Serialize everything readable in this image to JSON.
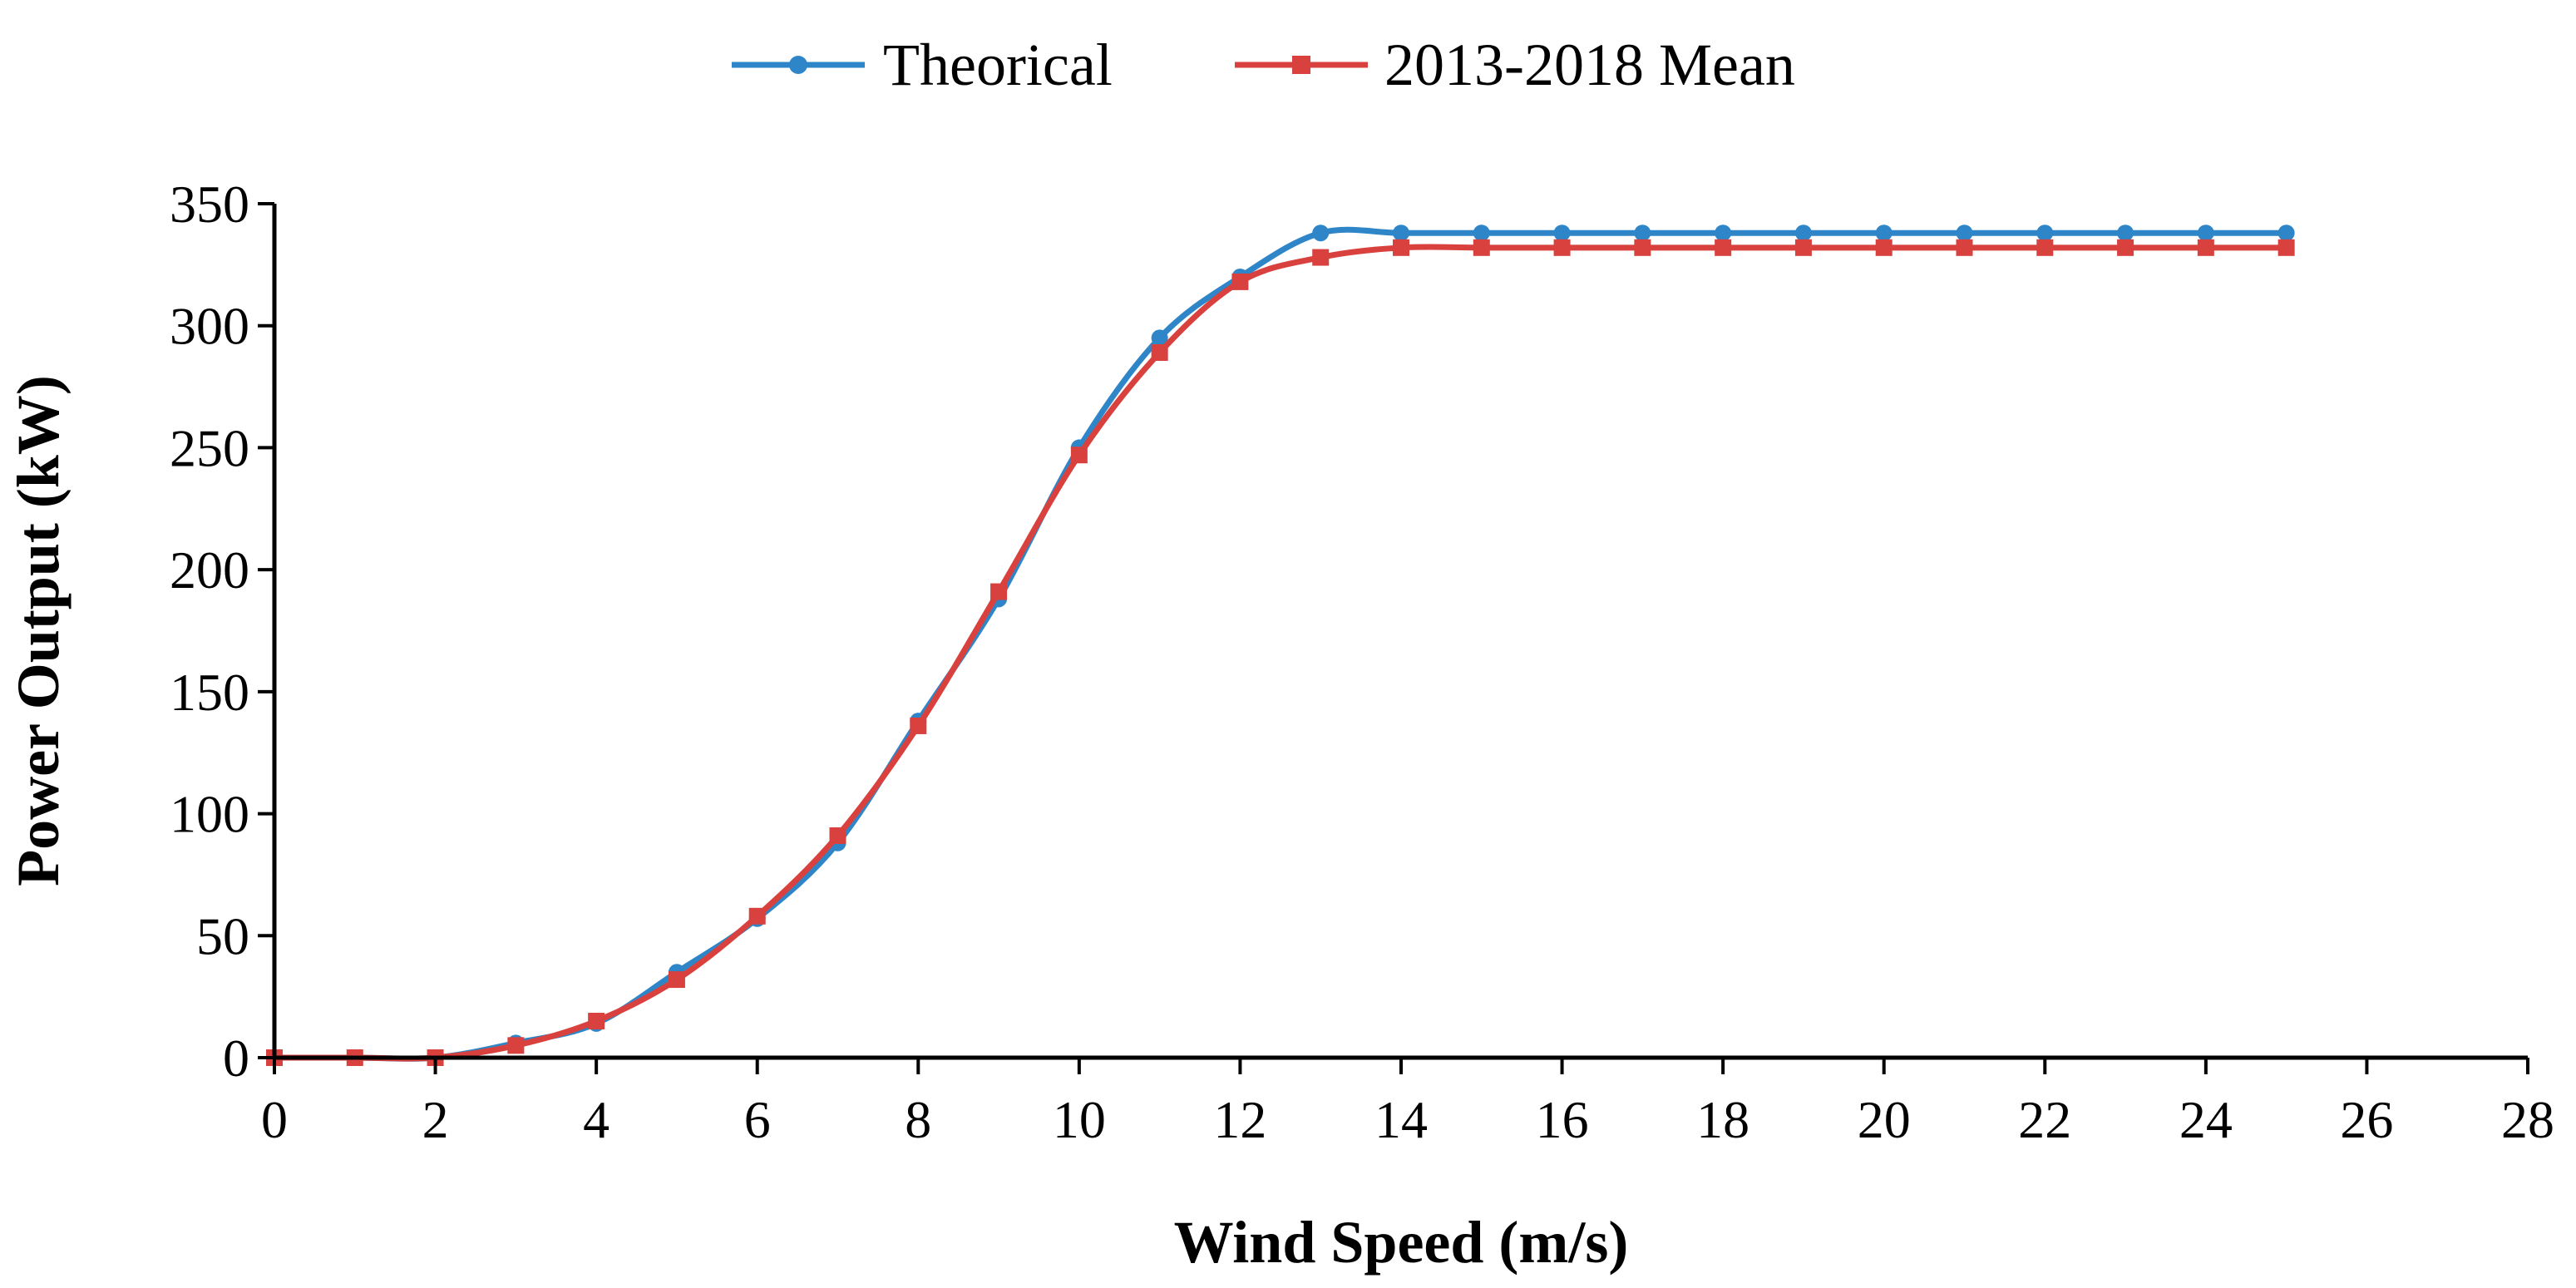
{
  "chart_data": {
    "type": "line",
    "title": "",
    "xlabel": "Wind Speed (m/s)",
    "ylabel": "Power Output (kW)",
    "xlim": [
      0,
      28
    ],
    "ylim": [
      0,
      350
    ],
    "xticks": [
      "0",
      "2",
      "4",
      "6",
      "8",
      "10",
      "12",
      "14",
      "16",
      "18",
      "20",
      "22",
      "24",
      "26",
      "28"
    ],
    "yticks": [
      "0",
      "50",
      "100",
      "150",
      "200",
      "250",
      "300",
      "350"
    ],
    "legend_position": "top-center",
    "grid": false,
    "series": [
      {
        "name": "Theorical",
        "color": "#2e86c8",
        "marker": "circle",
        "x": [
          0,
          1,
          2,
          3,
          4,
          5,
          6,
          7,
          8,
          9,
          10,
          11,
          12,
          13,
          14,
          15,
          16,
          17,
          18,
          19,
          20,
          21,
          22,
          23,
          24,
          25
        ],
        "y": [
          0,
          0,
          0,
          6,
          14,
          35,
          57,
          88,
          138,
          188,
          250,
          295,
          320,
          338,
          338,
          338,
          338,
          338,
          338,
          338,
          338,
          338,
          338,
          338,
          338,
          338
        ]
      },
      {
        "name": "2013-2018 Mean",
        "color": "#d9413e",
        "marker": "square",
        "x": [
          0,
          1,
          2,
          3,
          4,
          5,
          6,
          7,
          8,
          9,
          10,
          11,
          12,
          13,
          14,
          15,
          16,
          17,
          18,
          19,
          20,
          21,
          22,
          23,
          24,
          25
        ],
        "y": [
          0,
          0,
          0,
          5,
          15,
          32,
          58,
          91,
          136,
          191,
          247,
          289,
          318,
          328,
          332,
          332,
          332,
          332,
          332,
          332,
          332,
          332,
          332,
          332,
          332,
          332
        ]
      }
    ]
  }
}
